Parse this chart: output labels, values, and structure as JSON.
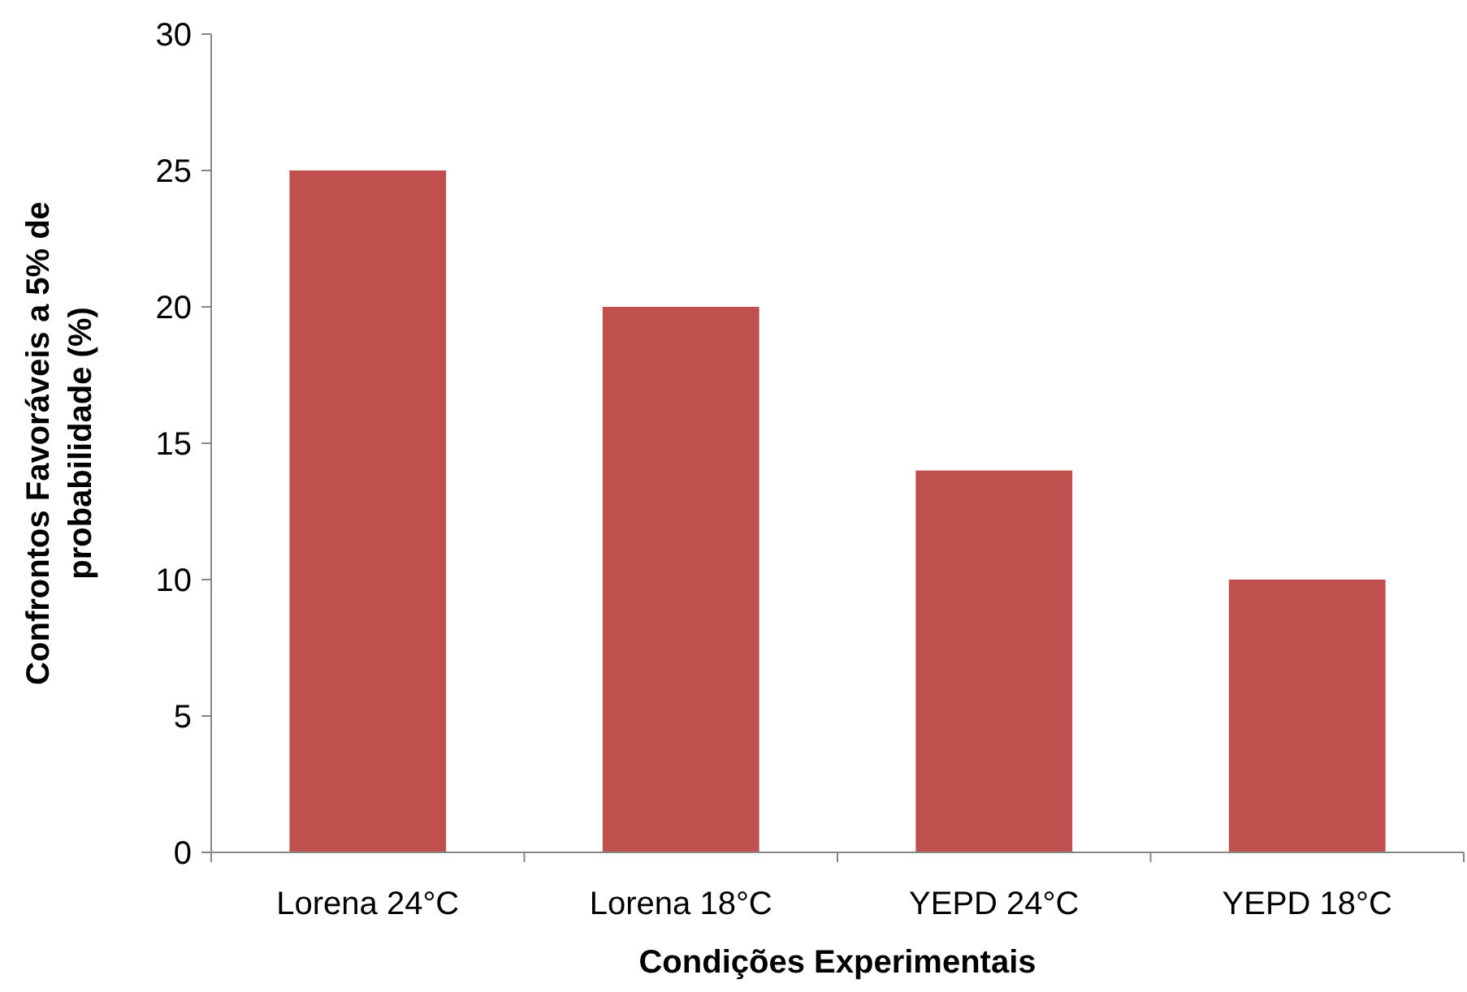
{
  "chart_data": {
    "type": "bar",
    "xlabel": "Condições Experimentais",
    "ylabel": "Confrontos Favoráveis a 5% de\nprobabilidade (%)",
    "categories": [
      "Lorena 24°C",
      "Lorena 18°C",
      "YEPD 24°C",
      "YEPD 18°C"
    ],
    "values": [
      25,
      20,
      14,
      10
    ],
    "color": "#c0504d",
    "ylim": [
      0,
      30
    ],
    "yticks": [
      0,
      5,
      10,
      15,
      20,
      25,
      30
    ],
    "grid": false
  }
}
